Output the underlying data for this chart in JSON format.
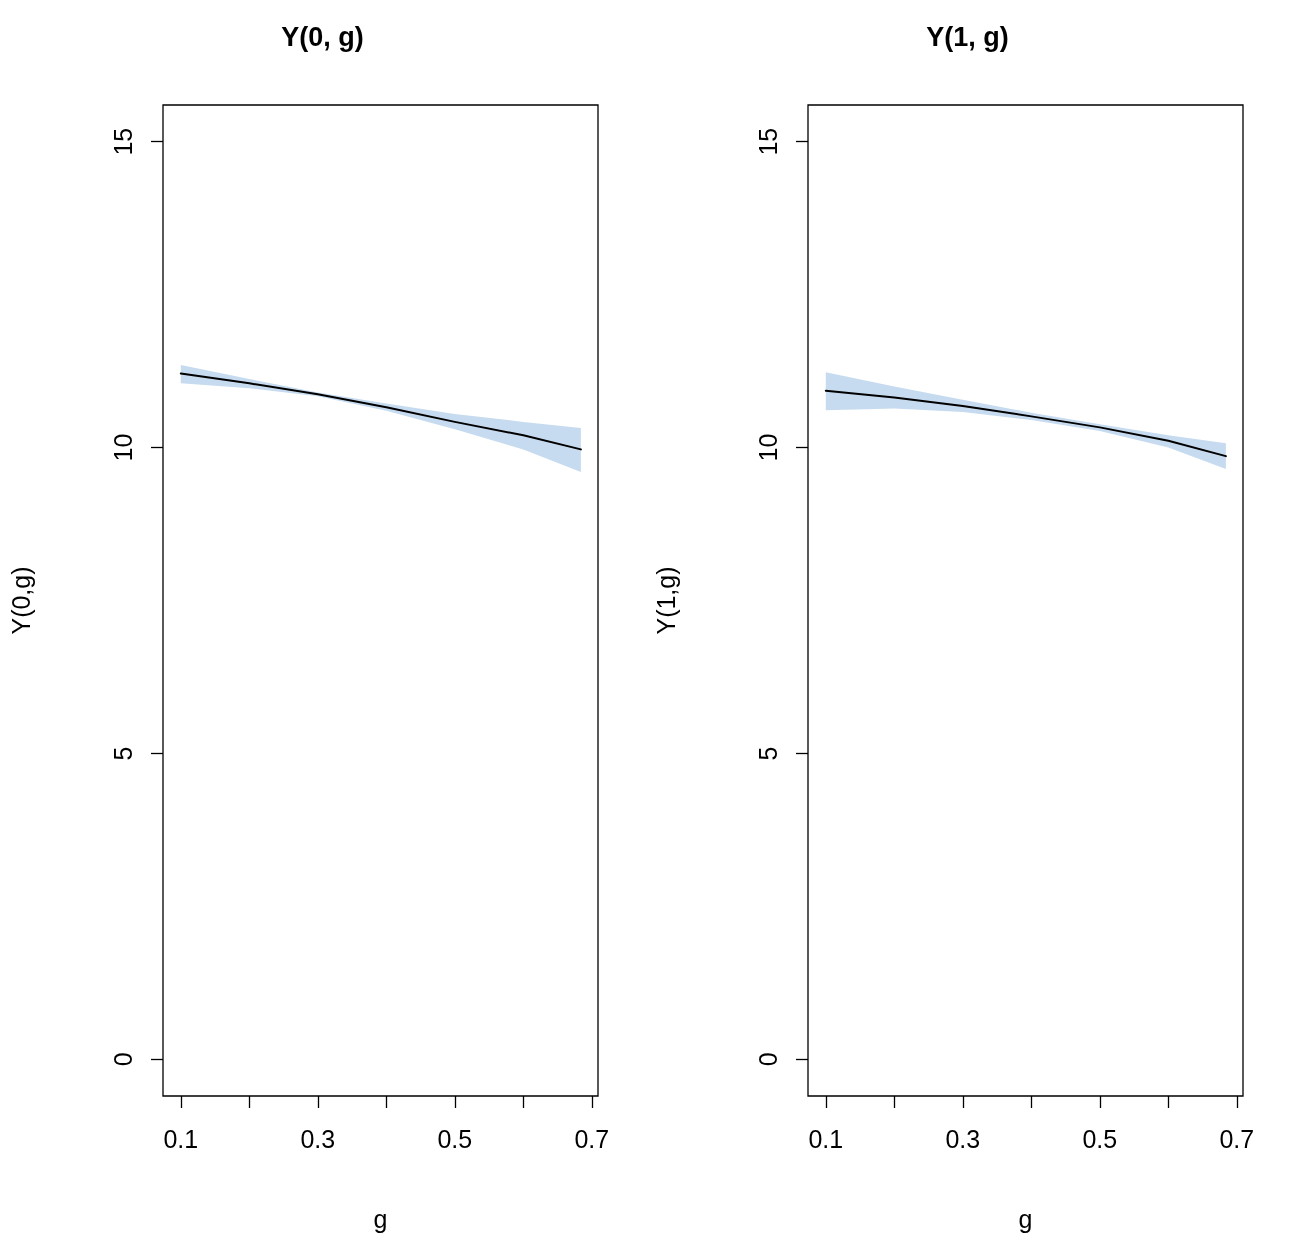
{
  "chart_data": [
    {
      "type": "line",
      "title": "Y(0, g)",
      "xlabel": "g",
      "ylabel": "Y(0,g)",
      "x": [
        0.1,
        0.2,
        0.3,
        0.4,
        0.5,
        0.6,
        0.684
      ],
      "series": [
        {
          "color": "#000000",
          "values": [
            11.21,
            11.05,
            10.87,
            10.66,
            10.42,
            10.2,
            9.97
          ],
          "lower": [
            11.05,
            10.97,
            10.84,
            10.6,
            10.3,
            9.97,
            9.6
          ],
          "upper": [
            11.35,
            11.12,
            10.9,
            10.72,
            10.55,
            10.42,
            10.32
          ]
        }
      ],
      "xlim": [
        0.074,
        0.709
      ],
      "xticks": [
        0.1,
        {
          "value": 0.2,
          "label": null
        },
        0.3,
        {
          "value": 0.4,
          "label": null
        },
        0.5,
        {
          "value": 0.6,
          "label": null
        },
        0.7
      ],
      "ylim": [
        -0.6,
        15.6
      ],
      "yticks": [
        0,
        5,
        10,
        15
      ],
      "grid": false,
      "marker": "none",
      "line_style": "solid"
    },
    {
      "type": "line",
      "title": "Y(1, g)",
      "xlabel": "g",
      "ylabel": "Y(1,g)",
      "x": [
        0.1,
        0.2,
        0.3,
        0.4,
        0.5,
        0.6,
        0.684
      ],
      "series": [
        {
          "color": "#000000",
          "values": [
            10.93,
            10.82,
            10.68,
            10.51,
            10.33,
            10.11,
            9.86
          ],
          "lower": [
            10.61,
            10.64,
            10.58,
            10.45,
            10.27,
            10.0,
            9.65
          ],
          "upper": [
            11.23,
            11.0,
            10.78,
            10.57,
            10.38,
            10.2,
            10.07
          ]
        }
      ],
      "xlim": [
        0.074,
        0.709
      ],
      "xticks": [
        0.1,
        {
          "value": 0.2,
          "label": null
        },
        0.3,
        {
          "value": 0.4,
          "label": null
        },
        0.5,
        {
          "value": 0.6,
          "label": null
        },
        0.7
      ],
      "ylim": [
        -0.6,
        15.6
      ],
      "yticks": [
        0,
        5,
        10,
        15
      ],
      "grid": false,
      "marker": "none",
      "line_style": "solid"
    }
  ]
}
